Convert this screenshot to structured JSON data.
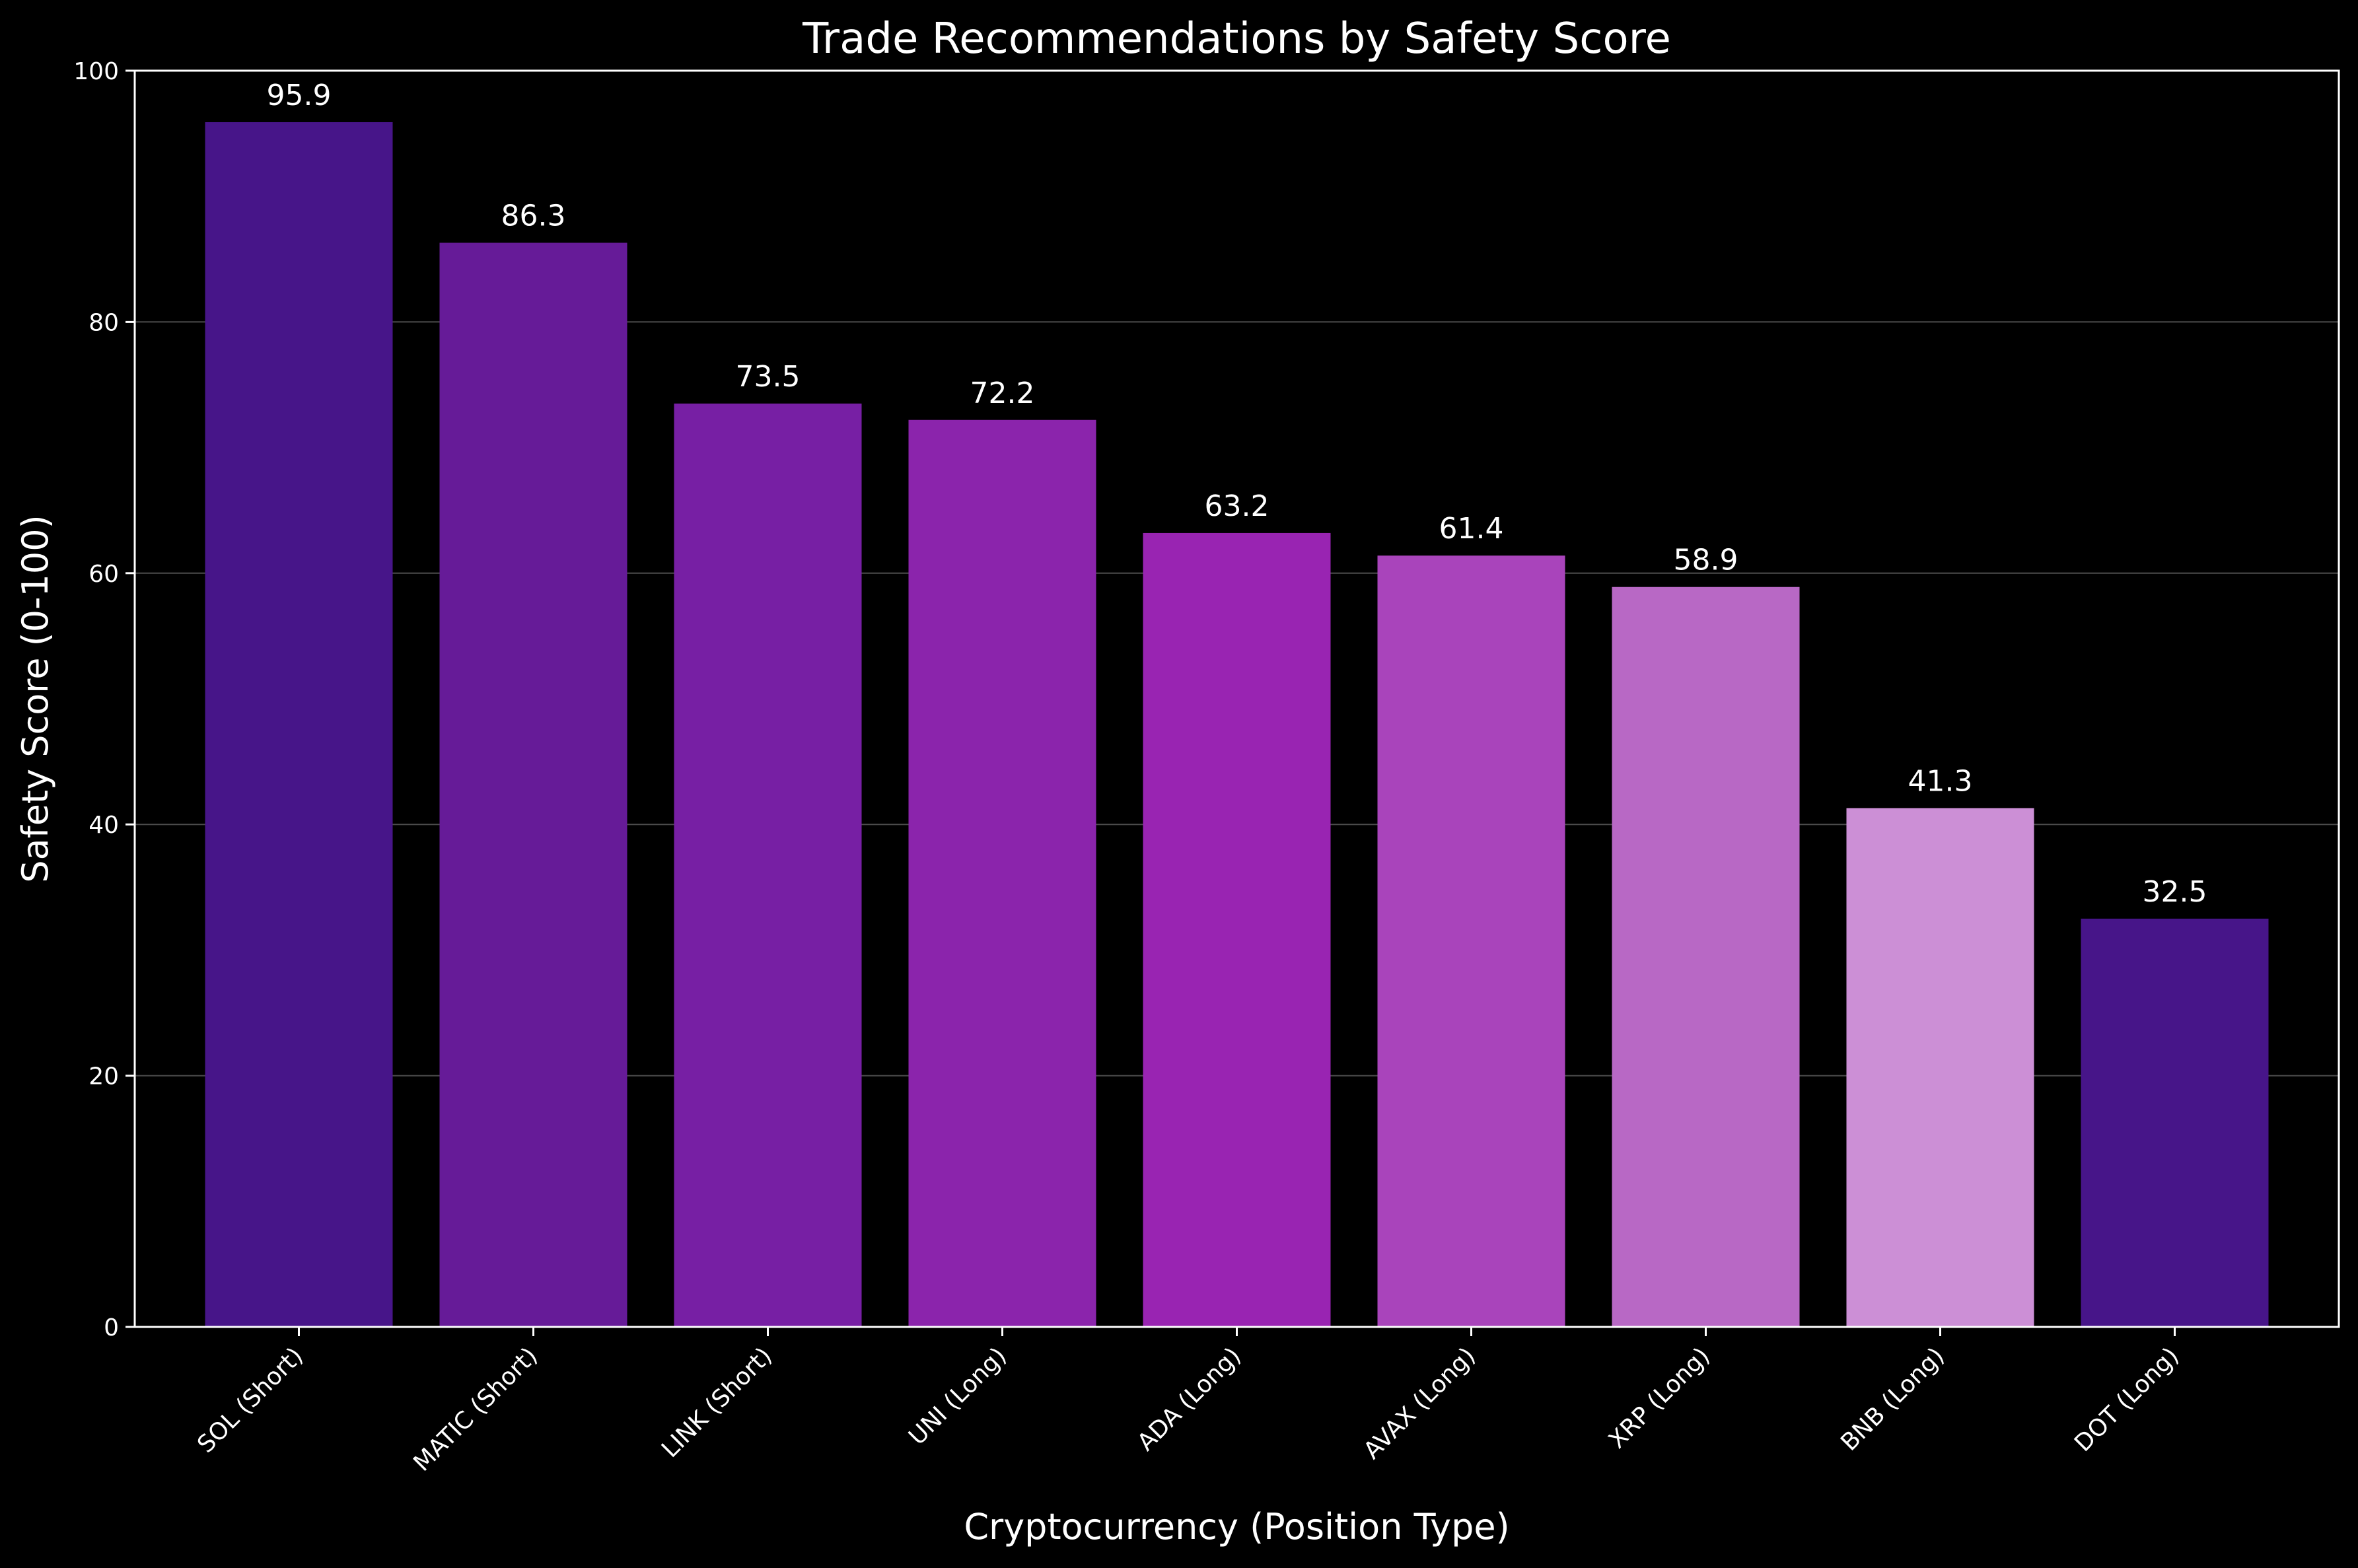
{
  "chart_data": {
    "type": "bar",
    "title": "Trade Recommendations by Safety Score",
    "xlabel": "Cryptocurrency (Position Type)",
    "ylabel": "Safety Score (0-100)",
    "ylim": [
      0,
      100
    ],
    "yticks": [
      0,
      20,
      40,
      60,
      80,
      100
    ],
    "grid": true,
    "categories": [
      "SOL (Short)",
      "MATIC (Short)",
      "LINK (Short)",
      "UNI (Long)",
      "ADA (Long)",
      "AVAX (Long)",
      "XRP (Long)",
      "BNB (Long)",
      "DOT (Long)"
    ],
    "values": [
      95.9,
      86.3,
      73.5,
      72.2,
      63.2,
      61.4,
      58.9,
      41.3,
      32.5
    ],
    "value_labels": [
      "95.9",
      "86.3",
      "73.5",
      "72.2",
      "63.2",
      "61.4",
      "58.9",
      "41.3",
      "32.5"
    ],
    "colors": [
      "#471589",
      "#661b98",
      "#771fa4",
      "#8b24ac",
      "#9924b2",
      "#a944bb",
      "#b868c5",
      "#cc8fd6",
      "#471589"
    ],
    "background": "#000000",
    "foreground": "#ffffff"
  }
}
